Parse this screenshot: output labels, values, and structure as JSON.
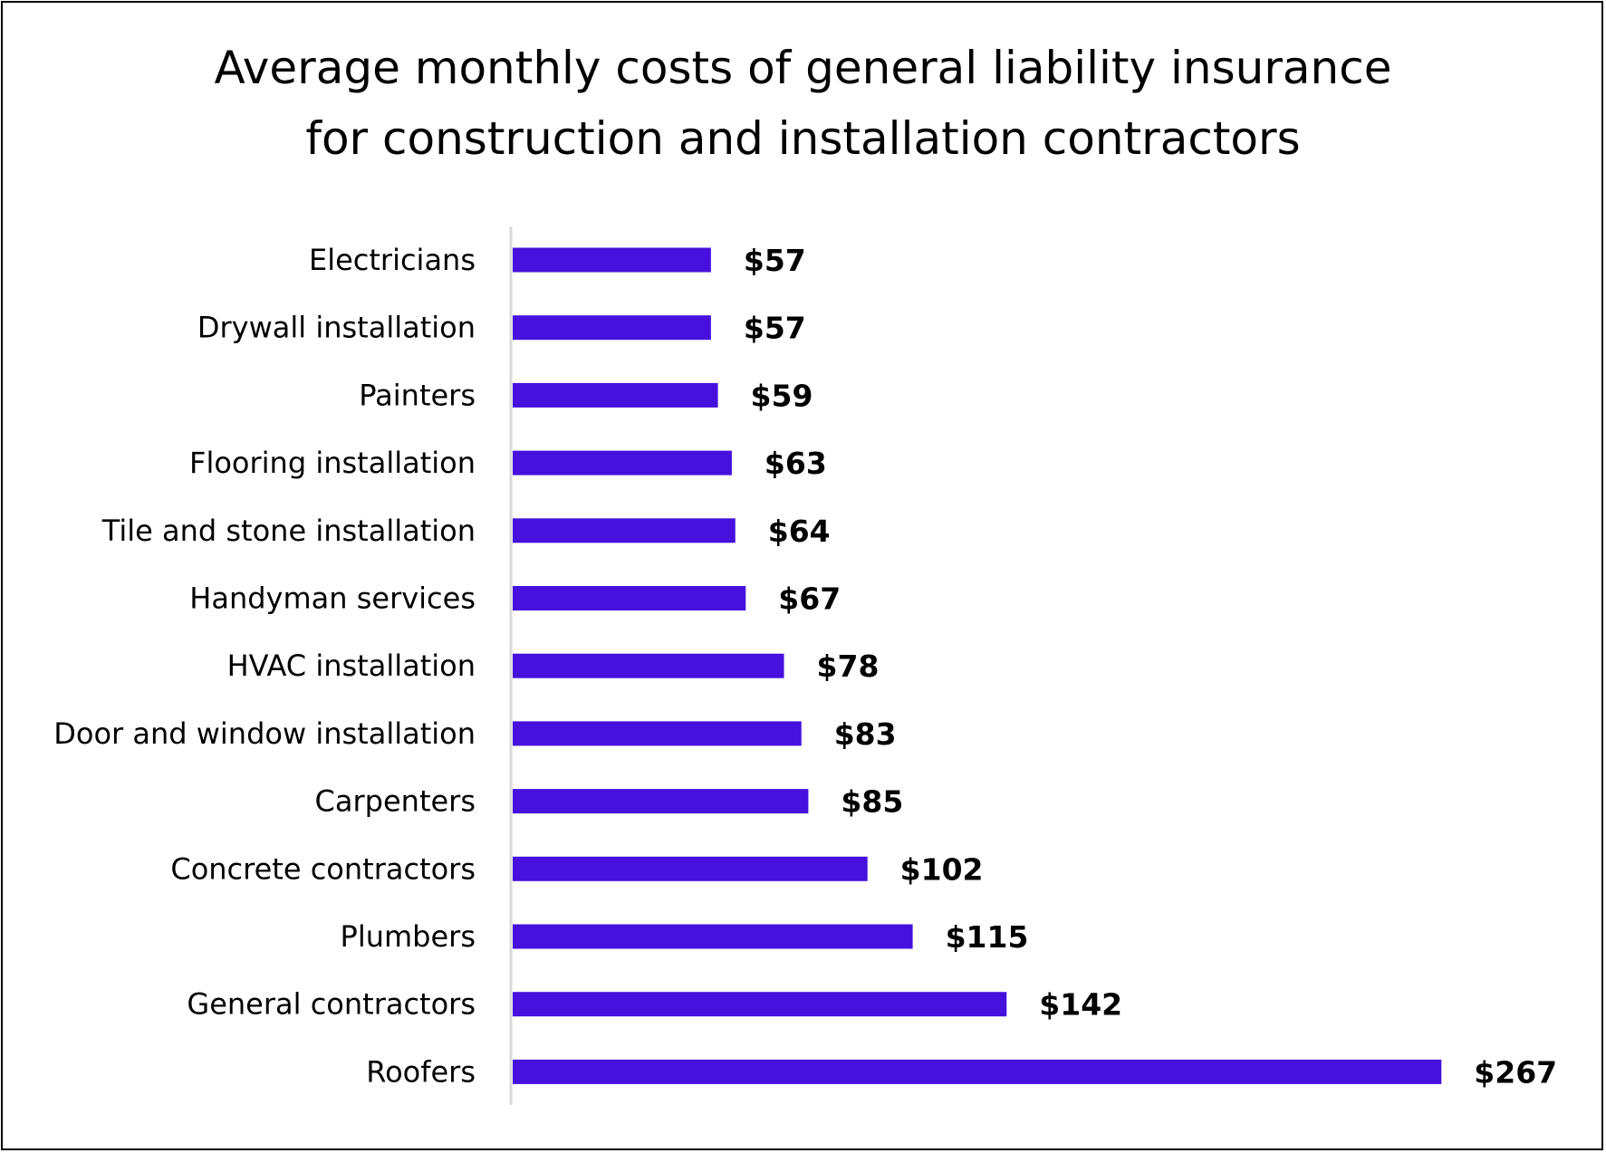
{
  "chart_data": {
    "type": "bar",
    "orientation": "horizontal",
    "title": [
      "Average monthly costs of general liability insurance",
      "for construction and installation contractors"
    ],
    "xlabel": "",
    "ylabel": "",
    "categories": [
      "Electricians",
      "Drywall installation",
      "Painters",
      "Flooring installation",
      "Tile and stone installation",
      "Handyman services",
      "HVAC installation",
      "Door and window installation",
      "Carpenters",
      "Concrete contractors",
      "Plumbers",
      "General contractors",
      "Roofers"
    ],
    "values": [
      57,
      57,
      59,
      63,
      64,
      67,
      78,
      83,
      85,
      102,
      115,
      142,
      267
    ],
    "data_labels": [
      "$57",
      "$57",
      "$59",
      "$63",
      "$64",
      "$67",
      "$78",
      "$83",
      "$85",
      "$102",
      "$115",
      "$142",
      "$267"
    ],
    "xlim": [
      0,
      267
    ],
    "grid": false,
    "legend": "none",
    "bar_color": "#4610DD"
  }
}
